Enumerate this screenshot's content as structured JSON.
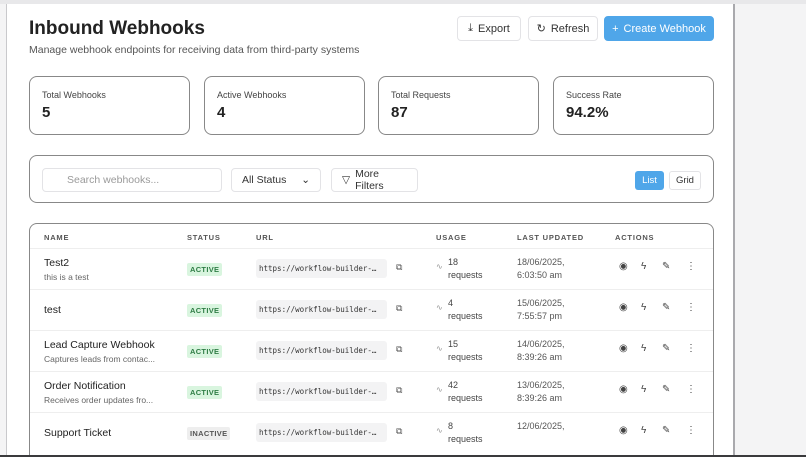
{
  "header": {
    "title": "Inbound Webhooks",
    "subtitle": "Manage webhook endpoints for receiving data from third-party systems",
    "export": "Export",
    "refresh": "Refresh",
    "create": "Create Webhook"
  },
  "stats": [
    {
      "label": "Total Webhooks",
      "value": "5"
    },
    {
      "label": "Active Webhooks",
      "value": "4"
    },
    {
      "label": "Total Requests",
      "value": "87"
    },
    {
      "label": "Success Rate",
      "value": "94.2%"
    }
  ],
  "filters": {
    "search_placeholder": "Search webhooks...",
    "status": "All Status",
    "more": "More Filters",
    "list": "List",
    "grid": "Grid"
  },
  "table": {
    "headers": [
      "NAME",
      "STATUS",
      "URL",
      "USAGE",
      "LAST UPDATED",
      "ACTIONS"
    ],
    "rows": [
      {
        "name": "Test2",
        "desc": "this is a test",
        "status": "ACTIVE",
        "url": "https://workflow-builder-…",
        "count": "18",
        "unit": "requests",
        "date": "18/06/2025,",
        "time": "6:03:50 am"
      },
      {
        "name": "test",
        "desc": "",
        "status": "ACTIVE",
        "url": "https://workflow-builder-…",
        "count": "4",
        "unit": "requests",
        "date": "15/06/2025,",
        "time": "7:55:57 pm"
      },
      {
        "name": "Lead Capture Webhook",
        "desc": "Captures leads from contac...",
        "status": "ACTIVE",
        "url": "https://workflow-builder-…",
        "count": "15",
        "unit": "requests",
        "date": "14/06/2025,",
        "time": "8:39:26 am"
      },
      {
        "name": "Order Notification",
        "desc": "Receives order updates fro...",
        "status": "ACTIVE",
        "url": "https://workflow-builder-…",
        "count": "42",
        "unit": "requests",
        "date": "13/06/2025,",
        "time": "8:39:26 am"
      },
      {
        "name": "Support Ticket",
        "desc": "",
        "status": "INACTIVE",
        "url": "https://workflow-builder-…",
        "count": "8",
        "unit": "requests",
        "date": "12/06/2025,",
        "time": ""
      }
    ]
  },
  "colors": {
    "primary": "#4fa6e9",
    "active_bg": "#d9f5df",
    "active_fg": "#2f7d45"
  }
}
